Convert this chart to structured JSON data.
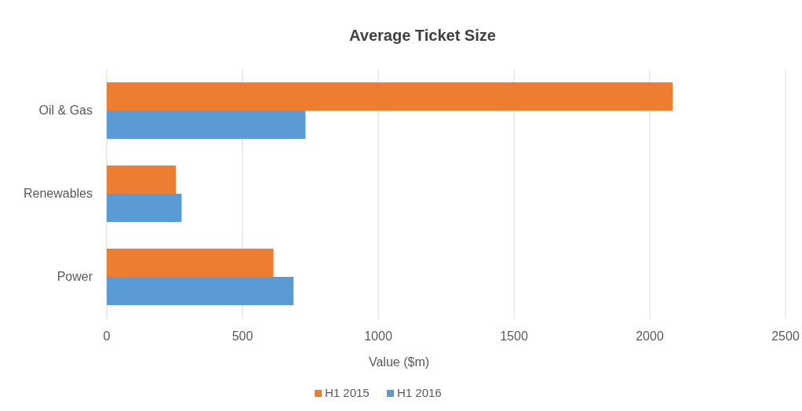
{
  "chart_data": {
    "type": "bar",
    "orientation": "horizontal",
    "title": "Average Ticket Size",
    "xlabel": "Value ($m)",
    "categories": [
      "Oil & Gas",
      "Renewables",
      "Power"
    ],
    "series": [
      {
        "name": "H1 2015",
        "color": "#ed7d31",
        "values": [
          2084,
          255,
          614
        ]
      },
      {
        "name": "H1 2016",
        "color": "#5b9bd5",
        "values": [
          732,
          276,
          688
        ]
      }
    ],
    "xlim": [
      0,
      2500
    ],
    "xticks": [
      0,
      500,
      1000,
      1500,
      2000,
      2500
    ],
    "grid": "x",
    "legend": "bottom"
  }
}
